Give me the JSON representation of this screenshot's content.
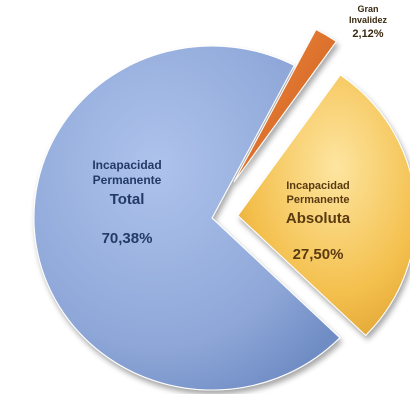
{
  "chart_data": {
    "type": "pie",
    "title": "",
    "categories": [
      "Incapacidad Permanente Total",
      "Incapacidad Permanente Absoluta",
      "Gran Invalidez"
    ],
    "values": [
      70.38,
      27.5,
      2.12
    ],
    "colors": [
      "#8ea7d8",
      "#f4c04e",
      "#e0712a"
    ],
    "exploded": [
      false,
      true,
      true
    ],
    "legend": "none",
    "labels": [
      {
        "line1": "Incapacidad",
        "line2": "Permanente",
        "line3": "Total",
        "value": "70,38%"
      },
      {
        "line1": "Incapacidad",
        "line2": "Permanente",
        "line3": "Absoluta",
        "value": "27,50%"
      },
      {
        "line1": "Gran",
        "line2": "Invalidez",
        "line3": "",
        "value": "2,12%"
      }
    ]
  }
}
